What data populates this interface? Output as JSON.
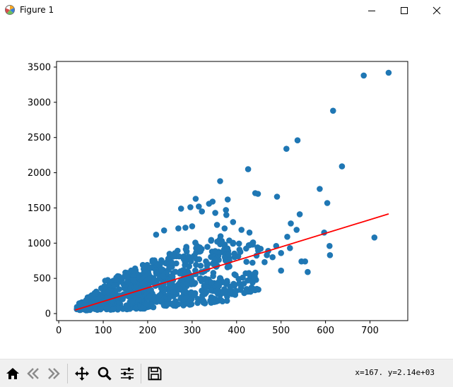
{
  "window": {
    "title": "Figure 1",
    "icon": "matplotlib-figure-icon",
    "controls": [
      "minimize-icon",
      "maximize-icon",
      "close-icon"
    ]
  },
  "toolbar": {
    "buttons": [
      {
        "name": "home-button",
        "icon": "home-icon"
      },
      {
        "name": "back-button",
        "icon": "back-arrow-icon"
      },
      {
        "name": "forward-button",
        "icon": "forward-arrow-icon"
      },
      {
        "name": "pan-button",
        "icon": "move-icon"
      },
      {
        "name": "zoom-button",
        "icon": "magnifier-icon"
      },
      {
        "name": "subplots-button",
        "icon": "sliders-icon"
      },
      {
        "name": "save-button",
        "icon": "floppy-disk-icon"
      }
    ],
    "coords": "x=167.  y=2.14e+03"
  },
  "chart_data": {
    "type": "scatter",
    "title": "",
    "xlabel": "",
    "ylabel": "",
    "xlim": [
      -5,
      785
    ],
    "ylim": [
      -100,
      3580
    ],
    "xticks": [
      "0",
      "100",
      "200",
      "300",
      "400",
      "500",
      "600",
      "700"
    ],
    "yticks": [
      "0",
      "500",
      "1000",
      "1500",
      "2000",
      "2500",
      "3000",
      "3500"
    ],
    "grid": false,
    "legend": "none",
    "colors": {
      "points": "#1f77b4",
      "fit_line": "#ff0000"
    },
    "fit_line": {
      "x": [
        37,
        742
      ],
      "y": [
        50,
        1415
      ]
    },
    "outliers": [
      {
        "x": 742,
        "y": 3420
      },
      {
        "x": 686,
        "y": 3380
      },
      {
        "x": 617,
        "y": 2880
      },
      {
        "x": 537,
        "y": 2460
      },
      {
        "x": 512,
        "y": 2340
      },
      {
        "x": 637,
        "y": 2090
      },
      {
        "x": 426,
        "y": 2050
      },
      {
        "x": 587,
        "y": 1770
      },
      {
        "x": 363,
        "y": 1880
      },
      {
        "x": 604,
        "y": 1570
      },
      {
        "x": 442,
        "y": 1710
      },
      {
        "x": 448,
        "y": 1700
      },
      {
        "x": 491,
        "y": 1660
      },
      {
        "x": 308,
        "y": 1630
      },
      {
        "x": 346,
        "y": 1590
      },
      {
        "x": 338,
        "y": 1560
      },
      {
        "x": 380,
        "y": 1620
      },
      {
        "x": 376,
        "y": 1470
      },
      {
        "x": 322,
        "y": 1450
      },
      {
        "x": 315,
        "y": 1520
      },
      {
        "x": 296,
        "y": 1510
      },
      {
        "x": 275,
        "y": 1490
      },
      {
        "x": 352,
        "y": 1430
      },
      {
        "x": 377,
        "y": 1400
      },
      {
        "x": 542,
        "y": 1410
      },
      {
        "x": 522,
        "y": 1280
      },
      {
        "x": 535,
        "y": 1190
      },
      {
        "x": 597,
        "y": 1150
      },
      {
        "x": 710,
        "y": 1080
      },
      {
        "x": 609,
        "y": 960
      },
      {
        "x": 610,
        "y": 830
      },
      {
        "x": 520,
        "y": 930
      },
      {
        "x": 489,
        "y": 960
      },
      {
        "x": 546,
        "y": 740
      },
      {
        "x": 554,
        "y": 740
      },
      {
        "x": 560,
        "y": 590
      },
      {
        "x": 500,
        "y": 610
      },
      {
        "x": 454,
        "y": 920
      },
      {
        "x": 471,
        "y": 890
      },
      {
        "x": 437,
        "y": 1010
      },
      {
        "x": 429,
        "y": 1150
      },
      {
        "x": 411,
        "y": 1190
      },
      {
        "x": 392,
        "y": 1300
      },
      {
        "x": 373,
        "y": 1210
      },
      {
        "x": 356,
        "y": 1260
      },
      {
        "x": 300,
        "y": 1240
      },
      {
        "x": 285,
        "y": 1220
      },
      {
        "x": 269,
        "y": 1210
      },
      {
        "x": 237,
        "y": 1180
      },
      {
        "x": 219,
        "y": 1120
      },
      {
        "x": 463,
        "y": 730
      },
      {
        "x": 442,
        "y": 570
      },
      {
        "x": 425,
        "y": 470
      },
      {
        "x": 436,
        "y": 440
      },
      {
        "x": 410,
        "y": 370
      },
      {
        "x": 449,
        "y": 340
      },
      {
        "x": 500,
        "y": 860
      },
      {
        "x": 468,
        "y": 830
      },
      {
        "x": 514,
        "y": 1090
      },
      {
        "x": 481,
        "y": 800
      }
    ],
    "clusters": [
      {
        "x0": 40,
        "x1": 110,
        "ylo0": 40,
        "yhi0": 130,
        "ylo1": 60,
        "yhi1": 420,
        "n": 110
      },
      {
        "x0": 100,
        "x1": 200,
        "ylo0": 50,
        "yhi0": 460,
        "ylo1": 70,
        "yhi1": 720,
        "n": 240
      },
      {
        "x0": 190,
        "x1": 290,
        "ylo0": 80,
        "yhi0": 720,
        "ylo1": 120,
        "yhi1": 1000,
        "n": 230
      },
      {
        "x0": 280,
        "x1": 380,
        "ylo0": 110,
        "yhi0": 960,
        "ylo1": 180,
        "yhi1": 1150,
        "n": 180
      },
      {
        "x0": 370,
        "x1": 450,
        "ylo0": 230,
        "yhi0": 1050,
        "ylo1": 330,
        "yhi1": 1000,
        "n": 70
      }
    ]
  }
}
